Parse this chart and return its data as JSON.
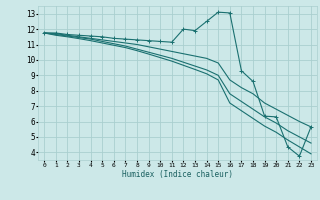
{
  "xlabel": "Humidex (Indice chaleur)",
  "ylabel": "",
  "bg_color": "#cce8e8",
  "grid_color": "#aacfcf",
  "line_color": "#1a7070",
  "xlim": [
    -0.5,
    23.5
  ],
  "ylim": [
    3.5,
    13.5
  ],
  "xticks": [
    0,
    1,
    2,
    3,
    4,
    5,
    6,
    7,
    8,
    9,
    10,
    11,
    12,
    13,
    14,
    15,
    16,
    17,
    18,
    19,
    20,
    21,
    22,
    23
  ],
  "yticks": [
    4,
    5,
    6,
    7,
    8,
    9,
    10,
    11,
    12,
    13
  ],
  "series": [
    {
      "x": [
        0,
        1,
        2,
        3,
        4,
        5,
        6,
        7,
        8,
        9,
        10,
        11,
        12,
        13,
        14,
        15,
        16,
        17,
        18,
        19,
        20,
        21,
        22,
        23
      ],
      "y": [
        11.75,
        11.75,
        11.65,
        11.6,
        11.55,
        11.5,
        11.4,
        11.35,
        11.3,
        11.25,
        11.2,
        11.15,
        12.0,
        11.9,
        12.5,
        13.1,
        13.05,
        9.3,
        8.6,
        6.35,
        6.3,
        4.35,
        3.75,
        5.65
      ],
      "marker": true
    },
    {
      "x": [
        0,
        1,
        2,
        3,
        4,
        5,
        6,
        7,
        8,
        9,
        10,
        11,
        12,
        13,
        14,
        15,
        16,
        17,
        18,
        19,
        20,
        21,
        22,
        23
      ],
      "y": [
        11.75,
        11.7,
        11.6,
        11.5,
        11.4,
        11.3,
        11.2,
        11.1,
        11.0,
        10.85,
        10.7,
        10.55,
        10.4,
        10.25,
        10.1,
        9.8,
        8.7,
        8.2,
        7.8,
        7.2,
        6.8,
        6.4,
        6.0,
        5.65
      ],
      "marker": false
    },
    {
      "x": [
        0,
        1,
        2,
        3,
        4,
        5,
        6,
        7,
        8,
        9,
        10,
        11,
        12,
        13,
        14,
        15,
        16,
        17,
        18,
        19,
        20,
        21,
        22,
        23
      ],
      "y": [
        11.75,
        11.65,
        11.55,
        11.45,
        11.35,
        11.2,
        11.05,
        10.9,
        10.7,
        10.5,
        10.3,
        10.1,
        9.85,
        9.6,
        9.35,
        9.0,
        7.8,
        7.3,
        6.8,
        6.3,
        5.9,
        5.4,
        5.0,
        4.6
      ],
      "marker": false
    },
    {
      "x": [
        0,
        1,
        2,
        3,
        4,
        5,
        6,
        7,
        8,
        9,
        10,
        11,
        12,
        13,
        14,
        15,
        16,
        17,
        18,
        19,
        20,
        21,
        22,
        23
      ],
      "y": [
        11.75,
        11.6,
        11.5,
        11.38,
        11.25,
        11.1,
        10.95,
        10.8,
        10.6,
        10.38,
        10.15,
        9.92,
        9.65,
        9.38,
        9.1,
        8.7,
        7.2,
        6.7,
        6.2,
        5.7,
        5.3,
        4.8,
        4.35,
        3.9
      ],
      "marker": false
    }
  ]
}
